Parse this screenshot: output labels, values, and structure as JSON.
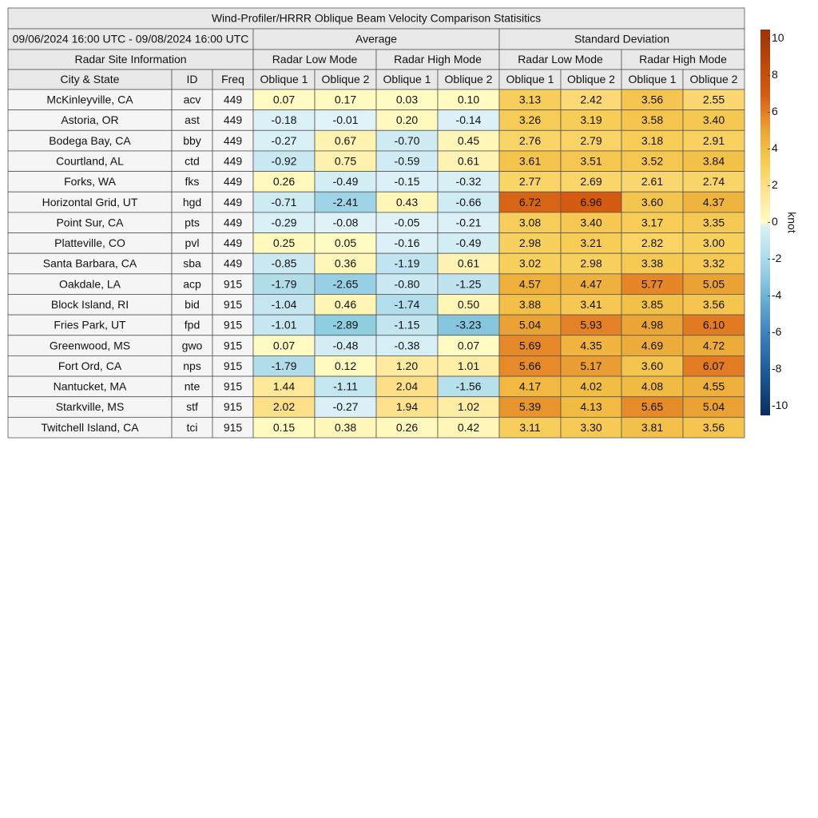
{
  "header": {
    "title": "Wind-Profiler/HRRR Oblique Beam Velocity Comparison Statisitics",
    "period": "09/06/2024 16:00 UTC - 09/08/2024 16:00 UTC",
    "groups": [
      "Average",
      "Standard Deviation"
    ],
    "site_info": "Radar Site Information",
    "modes": [
      "Radar Low Mode",
      "Radar High Mode",
      "Radar Low Mode",
      "Radar High Mode"
    ],
    "columns": [
      "City & State",
      "ID",
      "Freq",
      "Oblique 1",
      "Oblique 2",
      "Oblique 1",
      "Oblique 2",
      "Oblique 1",
      "Oblique 2",
      "Oblique 1",
      "Oblique 2"
    ]
  },
  "table": {
    "rows": [
      [
        "McKinleyville, CA",
        "acv",
        "449",
        "0.07",
        "0.17",
        "0.03",
        "0.10",
        "3.13",
        "2.42",
        "3.56",
        "2.55"
      ],
      [
        "Astoria, OR",
        "ast",
        "449",
        "-0.18",
        "-0.01",
        "0.20",
        "-0.14",
        "3.26",
        "3.19",
        "3.58",
        "3.40"
      ],
      [
        "Bodega Bay, CA",
        "bby",
        "449",
        "-0.27",
        "0.67",
        "-0.70",
        "0.45",
        "2.76",
        "2.79",
        "3.18",
        "2.91"
      ],
      [
        "Courtland, AL",
        "ctd",
        "449",
        "-0.92",
        "0.75",
        "-0.59",
        "0.61",
        "3.61",
        "3.51",
        "3.52",
        "3.84"
      ],
      [
        "Forks, WA",
        "fks",
        "449",
        "0.26",
        "-0.49",
        "-0.15",
        "-0.32",
        "2.77",
        "2.69",
        "2.61",
        "2.74"
      ],
      [
        "Horizontal Grid, UT",
        "hgd",
        "449",
        "-0.71",
        "-2.41",
        "0.43",
        "-0.66",
        "6.72",
        "6.96",
        "3.60",
        "4.37"
      ],
      [
        "Point Sur, CA",
        "pts",
        "449",
        "-0.29",
        "-0.08",
        "-0.05",
        "-0.21",
        "3.08",
        "3.40",
        "3.17",
        "3.35"
      ],
      [
        "Platteville, CO",
        "pvl",
        "449",
        "0.25",
        "0.05",
        "-0.16",
        "-0.49",
        "2.98",
        "3.21",
        "2.82",
        "3.00"
      ],
      [
        "Santa Barbara, CA",
        "sba",
        "449",
        "-0.85",
        "0.36",
        "-1.19",
        "0.61",
        "3.02",
        "2.98",
        "3.38",
        "3.32"
      ],
      [
        "Oakdale, LA",
        "acp",
        "915",
        "-1.79",
        "-2.65",
        "-0.80",
        "-1.25",
        "4.57",
        "4.47",
        "5.77",
        "5.05"
      ],
      [
        "Block Island, RI",
        "bid",
        "915",
        "-1.04",
        "0.46",
        "-1.74",
        "0.50",
        "3.88",
        "3.41",
        "3.85",
        "3.56"
      ],
      [
        "Fries Park, UT",
        "fpd",
        "915",
        "-1.01",
        "-2.89",
        "-1.15",
        "-3.23",
        "5.04",
        "5.93",
        "4.98",
        "6.10"
      ],
      [
        "Greenwood, MS",
        "gwo",
        "915",
        "0.07",
        "-0.48",
        "-0.38",
        "0.07",
        "5.69",
        "4.35",
        "4.69",
        "4.72"
      ],
      [
        "Fort Ord, CA",
        "nps",
        "915",
        "-1.79",
        "0.12",
        "1.20",
        "1.01",
        "5.66",
        "5.17",
        "3.60",
        "6.07"
      ],
      [
        "Nantucket, MA",
        "nte",
        "915",
        "1.44",
        "-1.11",
        "2.04",
        "-1.56",
        "4.17",
        "4.02",
        "4.08",
        "4.55"
      ],
      [
        "Starkville, MS",
        "stf",
        "915",
        "2.02",
        "-0.27",
        "1.94",
        "1.02",
        "5.39",
        "4.13",
        "5.65",
        "5.04"
      ],
      [
        "Twitchell Island, CA",
        "tci",
        "915",
        "0.15",
        "0.38",
        "0.26",
        "0.42",
        "3.11",
        "3.30",
        "3.81",
        "3.56"
      ]
    ]
  },
  "colorbar": {
    "label": "knot",
    "lim": [
      -10.5,
      10.5
    ],
    "ticks": [
      10,
      8,
      6,
      4,
      2,
      0,
      -2,
      -4,
      -6,
      -8,
      -10
    ]
  }
}
